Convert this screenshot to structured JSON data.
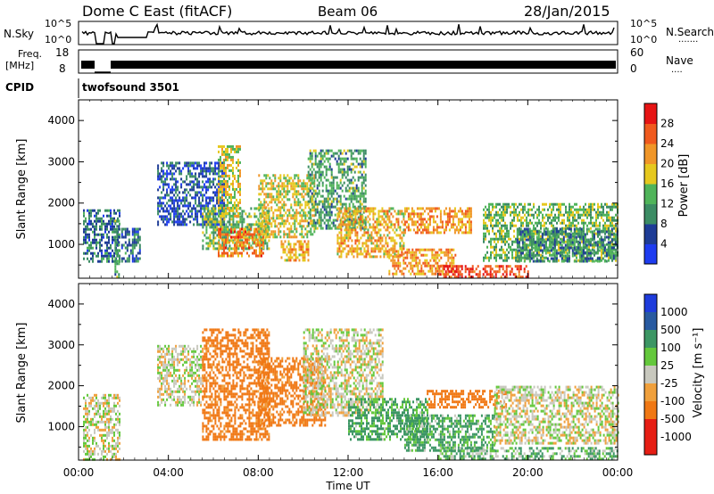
{
  "header": {
    "station": "Dome C East (fitACF)",
    "beam": "Beam 06",
    "date": "28/Jan/2015"
  },
  "strips": {
    "nsky": {
      "label": "N.Sky",
      "ticks": [
        "10^5",
        "10^0"
      ],
      "right_ticks": [
        "10^5",
        "10^0"
      ],
      "right_label": "N.Search",
      "right_marker": "·······"
    },
    "freq": {
      "label": "Freq.",
      "unit": "[MHz]",
      "ticks": [
        "18",
        "8"
      ],
      "right_ticks": [
        "60",
        "0"
      ],
      "right_label": "Nave",
      "right_marker": "····"
    },
    "cpid": {
      "label": "CPID",
      "value": "twofsound 3501"
    }
  },
  "chart_data": [
    {
      "type": "heatmap",
      "panel": "power",
      "ylabel": "Slant Range [km]",
      "ylim": [
        180,
        4500
      ],
      "y_ticks": [
        "4000",
        "3000",
        "2000",
        "1000"
      ],
      "xlim": [
        0,
        24
      ],
      "colorbar": {
        "label": "Power [dB]",
        "bin_edges": [
          0,
          4,
          8,
          12,
          16,
          20,
          24,
          28,
          32
        ],
        "tick_labels": [
          "4",
          "8",
          "12",
          "16",
          "20",
          "24",
          "28"
        ],
        "colors": [
          "#1e3cf0",
          "#1e3c96",
          "#3c8c64",
          "#50b45a",
          "#e6c81e",
          "#f09628",
          "#f05a1e",
          "#e61414"
        ]
      },
      "echo_regions": [
        {
          "t": [
            0.2,
            1.8
          ],
          "r": [
            600,
            1850
          ],
          "power_db": 8
        },
        {
          "t": [
            1.6,
            1.8
          ],
          "r": [
            200,
            1600
          ],
          "power_db": 12
        },
        {
          "t": [
            1.9,
            2.7
          ],
          "r": [
            600,
            1400
          ],
          "power_db": 8
        },
        {
          "t": [
            3.5,
            6.5
          ],
          "r": [
            1500,
            3000
          ],
          "power_db": 6
        },
        {
          "t": [
            5.5,
            8.5
          ],
          "r": [
            900,
            1900
          ],
          "power_db": 14
        },
        {
          "t": [
            6.2,
            7.2
          ],
          "r": [
            1700,
            3400
          ],
          "power_db": 18
        },
        {
          "t": [
            6.2,
            8.2
          ],
          "r": [
            700,
            1400
          ],
          "power_db": 24
        },
        {
          "t": [
            8.0,
            10.5
          ],
          "r": [
            1200,
            2700
          ],
          "power_db": 18
        },
        {
          "t": [
            9.0,
            10.2
          ],
          "r": [
            600,
            1100
          ],
          "power_db": 20
        },
        {
          "t": [
            10.2,
            12.8
          ],
          "r": [
            1400,
            3300
          ],
          "power_db": 12
        },
        {
          "t": [
            11.5,
            14.5
          ],
          "r": [
            700,
            1900
          ],
          "power_db": 20
        },
        {
          "t": [
            13.8,
            16.8
          ],
          "r": [
            300,
            900
          ],
          "power_db": 22
        },
        {
          "t": [
            14.5,
            17.5
          ],
          "r": [
            1300,
            1900
          ],
          "power_db": 22
        },
        {
          "t": [
            16.0,
            20.0
          ],
          "r": [
            200,
            500
          ],
          "power_db": 28
        },
        {
          "t": [
            18.0,
            24.0
          ],
          "r": [
            600,
            2000
          ],
          "power_db": 14
        },
        {
          "t": [
            19.5,
            24.0
          ],
          "r": [
            600,
            1400
          ],
          "power_db": 10
        }
      ]
    },
    {
      "type": "heatmap",
      "panel": "velocity",
      "ylabel": "Slant Range [km]",
      "xlabel": "Time UT",
      "ylim": [
        180,
        4500
      ],
      "y_ticks": [
        "4000",
        "3000",
        "2000",
        "1000"
      ],
      "xlim": [
        0,
        24
      ],
      "x_tick_values": [
        0,
        4,
        8,
        12,
        16,
        20,
        24
      ],
      "x_tick_labels": [
        "00:00",
        "04:00",
        "08:00",
        "12:00",
        "16:00",
        "20:00",
        "00:00"
      ],
      "colorbar": {
        "label": "Velocity [m s⁻¹]",
        "tick_labels": [
          "1000",
          "500",
          "100",
          "25",
          "-25",
          "-100",
          "-500",
          "-1000"
        ],
        "colors": [
          "#1e3cdc",
          "#285aa0",
          "#3c9664",
          "#64c83c",
          "#c8c8be",
          "#f0a03c",
          "#f07814",
          "#e61e14"
        ]
      },
      "echo_regions": [
        {
          "t": [
            0.2,
            1.8
          ],
          "r": [
            200,
            1800
          ],
          "velocity_ms": 0
        },
        {
          "t": [
            3.5,
            5.5
          ],
          "r": [
            1500,
            3000
          ],
          "velocity_ms": 0
        },
        {
          "t": [
            5.5,
            8.5
          ],
          "r": [
            700,
            3400
          ],
          "velocity_ms": -150
        },
        {
          "t": [
            8.0,
            11.0
          ],
          "r": [
            1000,
            2700
          ],
          "velocity_ms": -150
        },
        {
          "t": [
            10.0,
            13.5
          ],
          "r": [
            1300,
            3400
          ],
          "velocity_ms": 0
        },
        {
          "t": [
            12.0,
            15.5
          ],
          "r": [
            700,
            1700
          ],
          "velocity_ms": 80
        },
        {
          "t": [
            14.5,
            18.5
          ],
          "r": [
            400,
            1300
          ],
          "velocity_ms": 80
        },
        {
          "t": [
            15.5,
            19.0
          ],
          "r": [
            1500,
            1900
          ],
          "velocity_ms": -400
        },
        {
          "t": [
            18.5,
            24.0
          ],
          "r": [
            600,
            2000
          ],
          "velocity_ms": 0
        },
        {
          "t": [
            16.0,
            24.0
          ],
          "r": [
            200,
            500
          ],
          "velocity_ms": 60
        }
      ]
    }
  ]
}
